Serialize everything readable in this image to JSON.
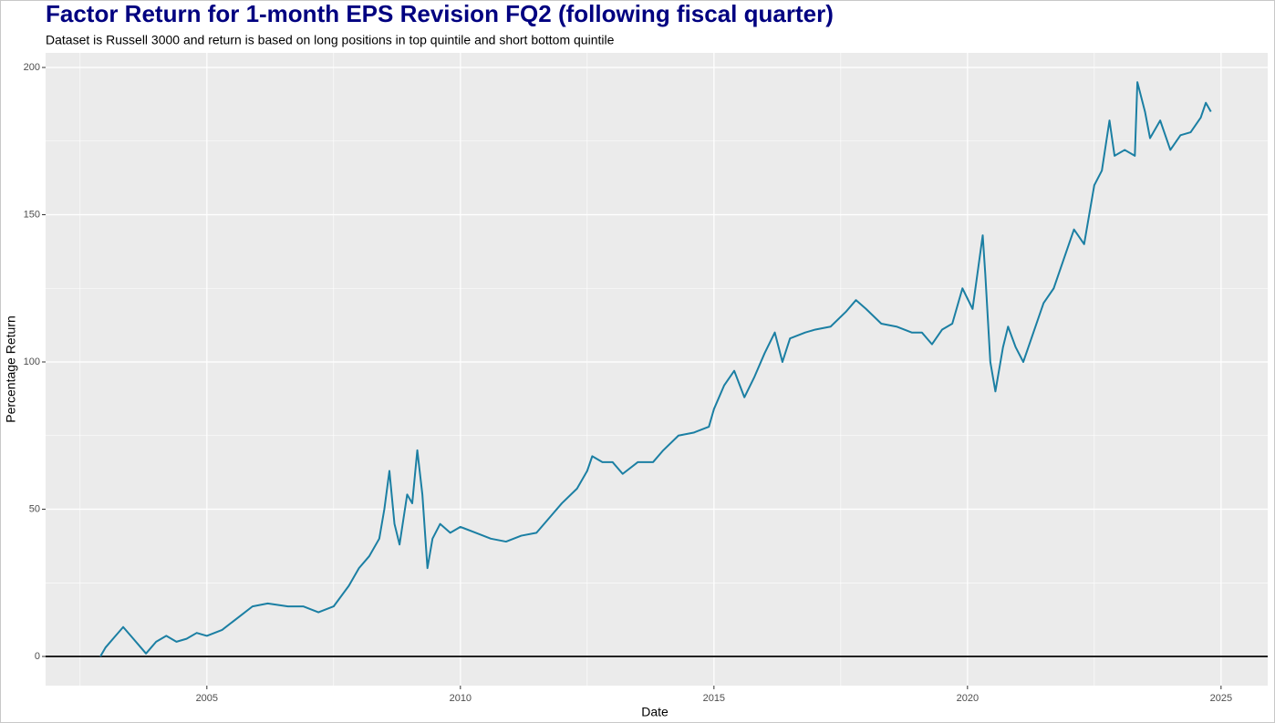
{
  "chart_data": {
    "type": "line",
    "title": "Factor Return for 1-month EPS Revision FQ2 (following fiscal quarter)",
    "subtitle": "Dataset is Russell 3000 and return is based on long positions in top quintile and short bottom quintile",
    "x_label": "Date",
    "y_label": "Percentage Return",
    "x": [
      2002.9,
      2003.0,
      2003.2,
      2003.35,
      2003.5,
      2003.7,
      2003.8,
      2003.9,
      2004.0,
      2004.2,
      2004.4,
      2004.6,
      2004.8,
      2005.0,
      2005.3,
      2005.6,
      2005.9,
      2006.2,
      2006.6,
      2006.9,
      2007.2,
      2007.5,
      2007.8,
      2008.0,
      2008.2,
      2008.4,
      2008.5,
      2008.6,
      2008.7,
      2008.8,
      2008.95,
      2009.05,
      2009.15,
      2009.25,
      2009.35,
      2009.45,
      2009.6,
      2009.8,
      2010.0,
      2010.3,
      2010.6,
      2010.9,
      2011.2,
      2011.5,
      2011.8,
      2012.0,
      2012.3,
      2012.5,
      2012.6,
      2012.8,
      2013.0,
      2013.2,
      2013.5,
      2013.8,
      2014.0,
      2014.3,
      2014.6,
      2014.9,
      2015.0,
      2015.2,
      2015.4,
      2015.6,
      2015.8,
      2016.0,
      2016.2,
      2016.35,
      2016.5,
      2016.8,
      2017.0,
      2017.3,
      2017.6,
      2017.8,
      2018.0,
      2018.3,
      2018.6,
      2018.9,
      2019.1,
      2019.3,
      2019.5,
      2019.7,
      2019.9,
      2020.1,
      2020.3,
      2020.35,
      2020.45,
      2020.55,
      2020.7,
      2020.8,
      2020.95,
      2021.1,
      2021.3,
      2021.5,
      2021.7,
      2021.9,
      2022.1,
      2022.3,
      2022.5,
      2022.65,
      2022.8,
      2022.9,
      2023.1,
      2023.3,
      2023.35,
      2023.5,
      2023.6,
      2023.8,
      2024.0,
      2024.2,
      2024.4,
      2024.6,
      2024.7,
      2024.8
    ],
    "series": [
      {
        "name": "Factor Return",
        "color": "#1b7fa3",
        "values": [
          0,
          3,
          7,
          10,
          7,
          3,
          1,
          3,
          5,
          7,
          5,
          6,
          8,
          7,
          9,
          13,
          17,
          18,
          17,
          17,
          15,
          17,
          24,
          30,
          34,
          40,
          50,
          63,
          45,
          38,
          55,
          52,
          70,
          55,
          30,
          40,
          45,
          42,
          44,
          42,
          40,
          39,
          41,
          42,
          48,
          52,
          57,
          63,
          68,
          66,
          66,
          62,
          66,
          66,
          70,
          75,
          76,
          78,
          84,
          92,
          97,
          88,
          95,
          103,
          110,
          100,
          108,
          110,
          111,
          112,
          117,
          121,
          118,
          113,
          112,
          110,
          110,
          106,
          111,
          113,
          125,
          118,
          143,
          130,
          100,
          90,
          105,
          112,
          105,
          100,
          110,
          120,
          125,
          135,
          145,
          140,
          160,
          165,
          182,
          170,
          172,
          170,
          195,
          185,
          176,
          182,
          172,
          177,
          178,
          183,
          188,
          185
        ]
      }
    ],
    "xlim": [
      2001.82,
      2025.92
    ],
    "ylim": [
      -9.9,
      204.95
    ],
    "xticks": [
      2005,
      2010,
      2015,
      2020,
      2025
    ],
    "yticks": [
      0,
      50,
      100,
      150,
      200
    ],
    "xminor": [
      2002.5,
      2007.5,
      2012.5,
      2017.5,
      2022.5
    ],
    "yminor": [
      25,
      75,
      125,
      175
    ],
    "hline": 0,
    "grid": true
  }
}
